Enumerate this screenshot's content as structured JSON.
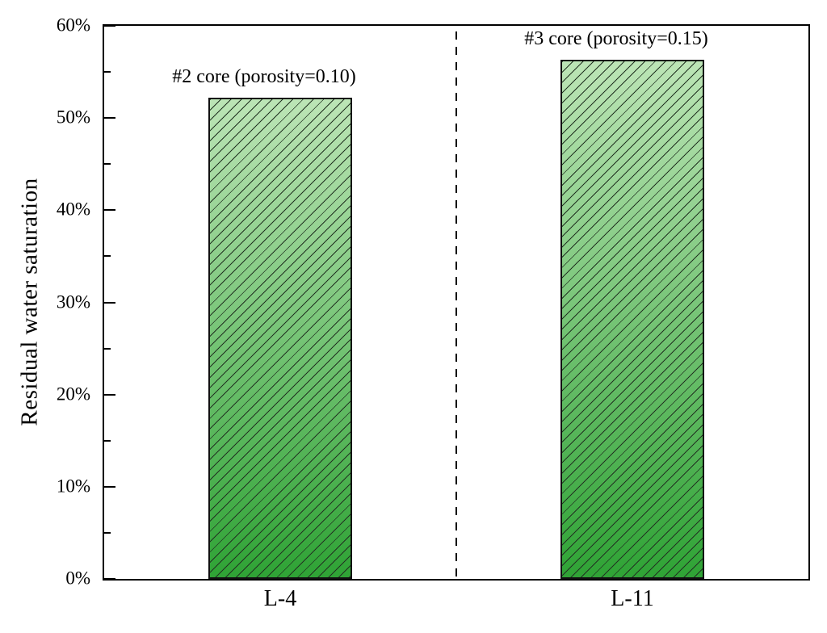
{
  "figure": {
    "background": "#ffffff"
  },
  "chart_data": {
    "type": "bar",
    "title": "",
    "xlabel": "",
    "ylabel": "Residual water saturation",
    "categories": [
      "L-4",
      "L-11"
    ],
    "values": [
      52.2,
      56.3
    ],
    "value_unit": "%",
    "annotations": [
      "#2 core (porosity=0.10)",
      "#3 core (porosity=0.15)"
    ],
    "ylim": [
      0,
      60
    ],
    "y_major_ticks": [
      0,
      10,
      20,
      30,
      40,
      50,
      60
    ],
    "y_tick_labels": [
      "0%",
      "10%",
      "20%",
      "30%",
      "40%",
      "50%",
      "60%"
    ],
    "y_minor_tick_step": 5,
    "grid": "off",
    "legend": "none",
    "separator_line": {
      "orientation": "vertical",
      "style": "dashed",
      "position": "midpoint between the two category halves"
    },
    "bar_style": "forward-diagonal hatch over light-to-dark green vertical gradient",
    "colors": {
      "bar_gradient_top": "#bce5b6",
      "bar_gradient_bottom": "#2fa335",
      "bar_border": "#111111",
      "hatch_line": "#223322",
      "axis": "#000000",
      "text": "#000000"
    }
  }
}
